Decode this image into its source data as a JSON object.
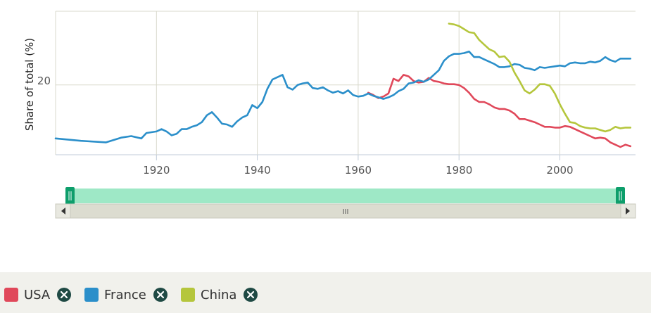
{
  "chart_data": {
    "type": "line",
    "title": "",
    "xlabel": "",
    "ylabel": "Share of total (%)",
    "x_ticks": [
      1920,
      1940,
      1960,
      1980,
      2000
    ],
    "y_ticks": [
      20
    ],
    "xlim": [
      1900,
      2015
    ],
    "ylim": [
      11,
      29.5
    ],
    "grid": true,
    "series": [
      {
        "name": "USA",
        "color": "#e0485a",
        "points": [
          [
            1962,
            19.0
          ],
          [
            1963,
            18.7
          ],
          [
            1964,
            18.3
          ],
          [
            1965,
            18.5
          ],
          [
            1966,
            18.9
          ],
          [
            1967,
            20.8
          ],
          [
            1968,
            20.5
          ],
          [
            1969,
            21.3
          ],
          [
            1970,
            21.1
          ],
          [
            1971,
            20.5
          ],
          [
            1972,
            20.3
          ],
          [
            1973,
            20.4
          ],
          [
            1974,
            20.9
          ],
          [
            1975,
            20.5
          ],
          [
            1976,
            20.4
          ],
          [
            1977,
            20.2
          ],
          [
            1978,
            20.1
          ],
          [
            1979,
            20.1
          ],
          [
            1980,
            20.0
          ],
          [
            1981,
            19.6
          ],
          [
            1982,
            19.0
          ],
          [
            1983,
            18.2
          ],
          [
            1984,
            17.8
          ],
          [
            1985,
            17.8
          ],
          [
            1986,
            17.5
          ],
          [
            1987,
            17.1
          ],
          [
            1988,
            16.9
          ],
          [
            1989,
            16.9
          ],
          [
            1990,
            16.7
          ],
          [
            1991,
            16.3
          ],
          [
            1992,
            15.6
          ],
          [
            1993,
            15.6
          ],
          [
            1994,
            15.4
          ],
          [
            1995,
            15.2
          ],
          [
            1996,
            14.9
          ],
          [
            1997,
            14.6
          ],
          [
            1998,
            14.6
          ],
          [
            1999,
            14.5
          ],
          [
            2000,
            14.5
          ],
          [
            2001,
            14.7
          ],
          [
            2002,
            14.6
          ],
          [
            2003,
            14.3
          ],
          [
            2004,
            14.0
          ],
          [
            2005,
            13.7
          ],
          [
            2006,
            13.4
          ],
          [
            2007,
            13.1
          ],
          [
            2008,
            13.2
          ],
          [
            2009,
            13.1
          ],
          [
            2010,
            12.6
          ],
          [
            2011,
            12.3
          ],
          [
            2012,
            12.0
          ],
          [
            2013,
            12.3
          ],
          [
            2014,
            12.1
          ]
        ]
      },
      {
        "name": "France",
        "color": "#2b8fca",
        "points": [
          [
            1900,
            13.1
          ],
          [
            1905,
            12.8
          ],
          [
            1910,
            12.6
          ],
          [
            1913,
            13.2
          ],
          [
            1915,
            13.4
          ],
          [
            1917,
            13.1
          ],
          [
            1918,
            13.8
          ],
          [
            1920,
            14.0
          ],
          [
            1921,
            14.3
          ],
          [
            1922,
            14.0
          ],
          [
            1923,
            13.5
          ],
          [
            1924,
            13.7
          ],
          [
            1925,
            14.3
          ],
          [
            1926,
            14.3
          ],
          [
            1927,
            14.6
          ],
          [
            1928,
            14.8
          ],
          [
            1929,
            15.2
          ],
          [
            1930,
            16.1
          ],
          [
            1931,
            16.5
          ],
          [
            1932,
            15.8
          ],
          [
            1933,
            15.0
          ],
          [
            1934,
            14.9
          ],
          [
            1935,
            14.6
          ],
          [
            1936,
            15.3
          ],
          [
            1937,
            15.8
          ],
          [
            1938,
            16.1
          ],
          [
            1939,
            17.4
          ],
          [
            1940,
            17.0
          ],
          [
            1941,
            17.8
          ],
          [
            1942,
            19.5
          ],
          [
            1943,
            20.7
          ],
          [
            1944,
            21.0
          ],
          [
            1945,
            21.3
          ],
          [
            1946,
            19.7
          ],
          [
            1947,
            19.4
          ],
          [
            1948,
            20.0
          ],
          [
            1949,
            20.2
          ],
          [
            1950,
            20.3
          ],
          [
            1951,
            19.6
          ],
          [
            1952,
            19.5
          ],
          [
            1953,
            19.7
          ],
          [
            1954,
            19.3
          ],
          [
            1955,
            19.0
          ],
          [
            1956,
            19.2
          ],
          [
            1957,
            18.9
          ],
          [
            1958,
            19.3
          ],
          [
            1959,
            18.7
          ],
          [
            1960,
            18.5
          ],
          [
            1961,
            18.6
          ],
          [
            1962,
            18.9
          ],
          [
            1963,
            18.6
          ],
          [
            1964,
            18.4
          ],
          [
            1965,
            18.2
          ],
          [
            1966,
            18.4
          ],
          [
            1967,
            18.7
          ],
          [
            1968,
            19.2
          ],
          [
            1969,
            19.5
          ],
          [
            1970,
            20.2
          ],
          [
            1971,
            20.3
          ],
          [
            1972,
            20.6
          ],
          [
            1973,
            20.4
          ],
          [
            1974,
            20.7
          ],
          [
            1975,
            21.3
          ],
          [
            1976,
            21.9
          ],
          [
            1977,
            23.1
          ],
          [
            1978,
            23.7
          ],
          [
            1979,
            24.0
          ],
          [
            1980,
            24.0
          ],
          [
            1981,
            24.1
          ],
          [
            1982,
            24.3
          ],
          [
            1983,
            23.6
          ],
          [
            1984,
            23.6
          ],
          [
            1985,
            23.3
          ],
          [
            1986,
            23.0
          ],
          [
            1987,
            22.7
          ],
          [
            1988,
            22.3
          ],
          [
            1989,
            22.3
          ],
          [
            1990,
            22.4
          ],
          [
            1991,
            22.7
          ],
          [
            1992,
            22.6
          ],
          [
            1993,
            22.2
          ],
          [
            1994,
            22.1
          ],
          [
            1995,
            21.9
          ],
          [
            1996,
            22.3
          ],
          [
            1997,
            22.2
          ],
          [
            1998,
            22.3
          ],
          [
            1999,
            22.4
          ],
          [
            2000,
            22.5
          ],
          [
            2001,
            22.4
          ],
          [
            2002,
            22.8
          ],
          [
            2003,
            22.9
          ],
          [
            2004,
            22.8
          ],
          [
            2005,
            22.8
          ],
          [
            2006,
            23.0
          ],
          [
            2007,
            22.9
          ],
          [
            2008,
            23.1
          ],
          [
            2009,
            23.6
          ],
          [
            2010,
            23.2
          ],
          [
            2011,
            23.0
          ],
          [
            2012,
            23.4
          ],
          [
            2013,
            23.4
          ],
          [
            2014,
            23.4
          ]
        ]
      },
      {
        "name": "China",
        "color": "#b5c63c",
        "points": [
          [
            1978,
            27.9
          ],
          [
            1979,
            27.8
          ],
          [
            1980,
            27.6
          ],
          [
            1981,
            27.2
          ],
          [
            1982,
            26.8
          ],
          [
            1983,
            26.7
          ],
          [
            1984,
            25.8
          ],
          [
            1985,
            25.2
          ],
          [
            1986,
            24.6
          ],
          [
            1987,
            24.3
          ],
          [
            1988,
            23.6
          ],
          [
            1989,
            23.7
          ],
          [
            1990,
            23.0
          ],
          [
            1991,
            21.6
          ],
          [
            1992,
            20.5
          ],
          [
            1993,
            19.3
          ],
          [
            1994,
            18.9
          ],
          [
            1995,
            19.4
          ],
          [
            1996,
            20.1
          ],
          [
            1997,
            20.1
          ],
          [
            1998,
            19.9
          ],
          [
            1999,
            18.9
          ],
          [
            2000,
            17.5
          ],
          [
            2001,
            16.3
          ],
          [
            2002,
            15.2
          ],
          [
            2003,
            15.1
          ],
          [
            2004,
            14.7
          ],
          [
            2005,
            14.5
          ],
          [
            2006,
            14.4
          ],
          [
            2007,
            14.4
          ],
          [
            2008,
            14.2
          ],
          [
            2009,
            14.0
          ],
          [
            2010,
            14.2
          ],
          [
            2011,
            14.6
          ],
          [
            2012,
            14.4
          ],
          [
            2013,
            14.5
          ],
          [
            2014,
            14.5
          ]
        ]
      }
    ]
  },
  "legend": {
    "items": [
      {
        "label": "USA",
        "color": "#e0485a"
      },
      {
        "label": "France",
        "color": "#2b8fca"
      },
      {
        "label": "China",
        "color": "#b5c63c"
      }
    ]
  },
  "navigator": {
    "handle_color": "#0d9e6b",
    "mask_color": "#9ee8c6",
    "scrollbar_grip": "III",
    "range": [
      1900,
      2015
    ]
  }
}
